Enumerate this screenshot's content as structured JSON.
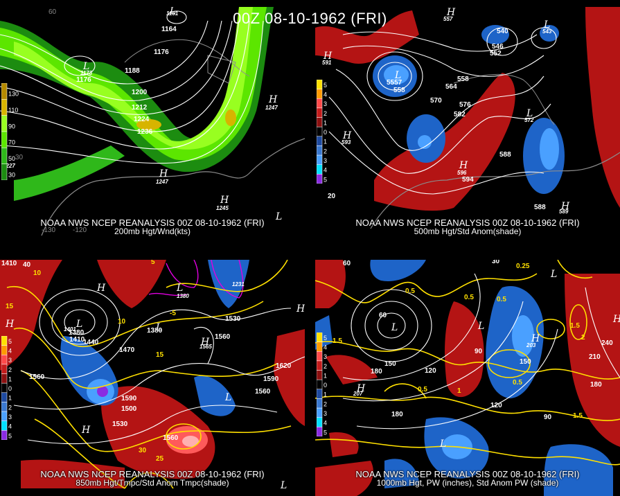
{
  "title": "00Z 08-10-1962 (FRI)",
  "panels": [
    {
      "id": "p200",
      "caption_line1": "NOAA NWS NCEP REANALYSIS 00Z 08-10-1962 (FRI)",
      "caption_line2": "200mb Hgt/Wnd(kts)",
      "legend": {
        "labels": [
          "130",
          "110",
          "90",
          "70",
          "50",
          "30"
        ],
        "colors": [
          "#b58a00",
          "#d7b400",
          "#98ff20",
          "#5ce600",
          "#2fb81a",
          "#1c8c10"
        ]
      },
      "contour_labels": [
        "1164",
        "1176",
        "1176",
        "1188",
        "1200",
        "1212",
        "1224",
        "1236",
        "1247",
        "1247",
        "1245",
        "1161",
        "1173",
        "1227",
        "120",
        "-130",
        "60",
        "60"
      ],
      "highs": [
        "H",
        "H",
        "H",
        "H"
      ],
      "lows": [
        "L",
        "L",
        "L"
      ]
    },
    {
      "id": "p500",
      "caption_line1": "NOAA NWS NCEP REANALYSIS 00Z 08-10-1962 (FRI)",
      "caption_line2": "500mb Hgt/Std Anom(shade)",
      "legend": {
        "labels": [
          "5",
          "4",
          "3",
          "2",
          "1",
          "0",
          "1",
          "2",
          "3",
          "4",
          "5"
        ],
        "colors": [
          "#ffe000",
          "#ff9a00",
          "#ff4a4a",
          "#c41c1c",
          "#8c1010",
          "#000000",
          "#1e4aa0",
          "#3a78d0",
          "#4aa0ff",
          "#00e0ff",
          "#8a2be2"
        ]
      },
      "contour_labels": [
        "557",
        "540",
        "546",
        "552",
        "543",
        "591",
        "5557",
        "558",
        "558",
        "564",
        "570",
        "576",
        "582",
        "572",
        "588",
        "596",
        "594",
        "593",
        "588",
        "589",
        "20"
      ],
      "highs": [
        "H",
        "H",
        "H",
        "H",
        "H",
        "H"
      ],
      "lows": [
        "L",
        "L",
        "L",
        "L"
      ]
    },
    {
      "id": "p850",
      "caption_line1": "NOAA NWS NCEP REANALYSIS 00Z 08-10-1962 (FRI)",
      "caption_line2": "850mb Hgt/Tmpc/Std Anom Tmpc(shade)",
      "legend": {
        "labels": [
          "5",
          "4",
          "3",
          "2",
          "1",
          "0",
          "1",
          "2",
          "3",
          "4",
          "5"
        ],
        "colors": [
          "#ffe000",
          "#ff9a00",
          "#ff4a4a",
          "#c41c1c",
          "#8c1010",
          "#000000",
          "#1e4aa0",
          "#3a78d0",
          "#4aa0ff",
          "#00e0ff",
          "#8a2be2"
        ]
      },
      "contour_labels": [
        "1410",
        "40",
        "10",
        "15",
        "1401",
        "1380",
        "1410",
        "1440",
        "1470",
        "1380",
        "1530",
        "1560",
        "1560",
        "1590",
        "1620",
        "1590",
        "1560",
        "1500",
        "1530",
        "1560",
        "30",
        "25",
        "10",
        "15",
        "5",
        "-5",
        "1231",
        "1380",
        "1565"
      ],
      "highs": [
        "H",
        "H",
        "H",
        "H",
        "H"
      ],
      "lows": [
        "L",
        "L",
        "L",
        "L",
        "L"
      ]
    },
    {
      "id": "p1000",
      "caption_line1": "NOAA NWS NCEP REANALYSIS 00Z 08-10-1962 (FRI)",
      "caption_line2": "1000mb Hgt, PW (inches), Std Anom PW (shade)",
      "legend": {
        "labels": [
          "5",
          "4",
          "3",
          "2",
          "1",
          "0",
          "1",
          "2",
          "3",
          "4",
          "5"
        ],
        "colors": [
          "#ffe000",
          "#ff9a00",
          "#ff4a4a",
          "#c41c1c",
          "#8c1010",
          "#000000",
          "#1e4aa0",
          "#3a78d0",
          "#4aa0ff",
          "#00e0ff",
          "#8a2be2"
        ]
      },
      "contour_labels": [
        "60",
        "30",
        "0.25",
        "1.5",
        "0.5",
        "0.5",
        "60",
        "90",
        "120",
        "150",
        "180",
        "180",
        "210",
        "240",
        "180",
        "150",
        "120",
        "90",
        "0.5",
        "0.5",
        "0.5",
        "1",
        "1.5",
        "1.5",
        "2",
        "207",
        "203"
      ],
      "highs": [
        "H",
        "H",
        "H"
      ],
      "lows": [
        "L",
        "L",
        "L",
        "L"
      ]
    }
  ],
  "colors": {
    "background": "#000000",
    "contour_white": "#ffffff",
    "temp_yellow": "#ffe000",
    "magenta": "#e000e0",
    "coast_gray": "#8c8c8c",
    "green_light": "#98ff20",
    "green_mid": "#5ce600",
    "green_dark": "#1c8c10",
    "anom_red": "#b41414",
    "anom_red_light": "#ff5a5a",
    "anom_blue": "#1e64c8",
    "anom_blue_light": "#4aa0ff"
  }
}
